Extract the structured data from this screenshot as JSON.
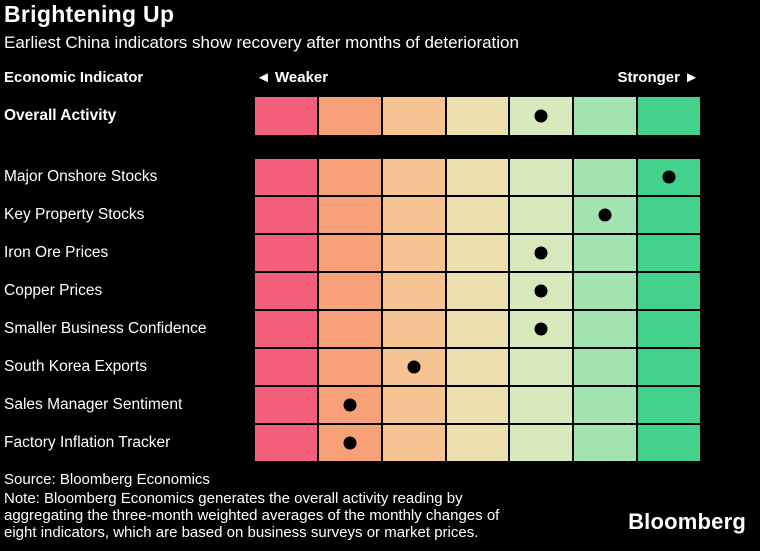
{
  "header": {
    "title": "Brightening Up",
    "subtitle": "Earliest China indicators show recovery after months of deterioration"
  },
  "columns": {
    "indicator_header": "Economic Indicator",
    "weaker_label": "◄ Weaker",
    "stronger_label": "Stronger ►"
  },
  "chart_data": {
    "type": "heatmap",
    "title": "Brightening Up",
    "subtitle": "Earliest China indicators show recovery after months of deterioration",
    "scale": {
      "levels": 7,
      "left_end": "Weaker",
      "right_end": "Stronger",
      "colors": [
        "#f4607c",
        "#f8a077",
        "#f5c492",
        "#ebdfae",
        "#d8e9be",
        "#a3e3af",
        "#43d28c"
      ]
    },
    "dot_color": "#000000",
    "overall_row": {
      "label": "Overall Activity",
      "value": 5
    },
    "rows": [
      {
        "label": "Major Onshore Stocks",
        "value": 7
      },
      {
        "label": "Key Property Stocks",
        "value": 6
      },
      {
        "label": "Iron Ore Prices",
        "value": 5
      },
      {
        "label": "Copper Prices",
        "value": 5
      },
      {
        "label": "Smaller Business Confidence",
        "value": 5
      },
      {
        "label": "South Korea Exports",
        "value": 3
      },
      {
        "label": "Sales Manager Sentiment",
        "value": 2
      },
      {
        "label": "Factory Inflation Tracker",
        "value": 2
      }
    ]
  },
  "footer": {
    "source": "Source: Bloomberg Economics",
    "note_lines": [
      "Note: Bloomberg Economics generates the overall activity reading by",
      "aggregating the three-month weighted averages of the monthly changes of",
      "eight indicators, which are based on business surveys or market prices."
    ],
    "brand": "Bloomberg"
  }
}
